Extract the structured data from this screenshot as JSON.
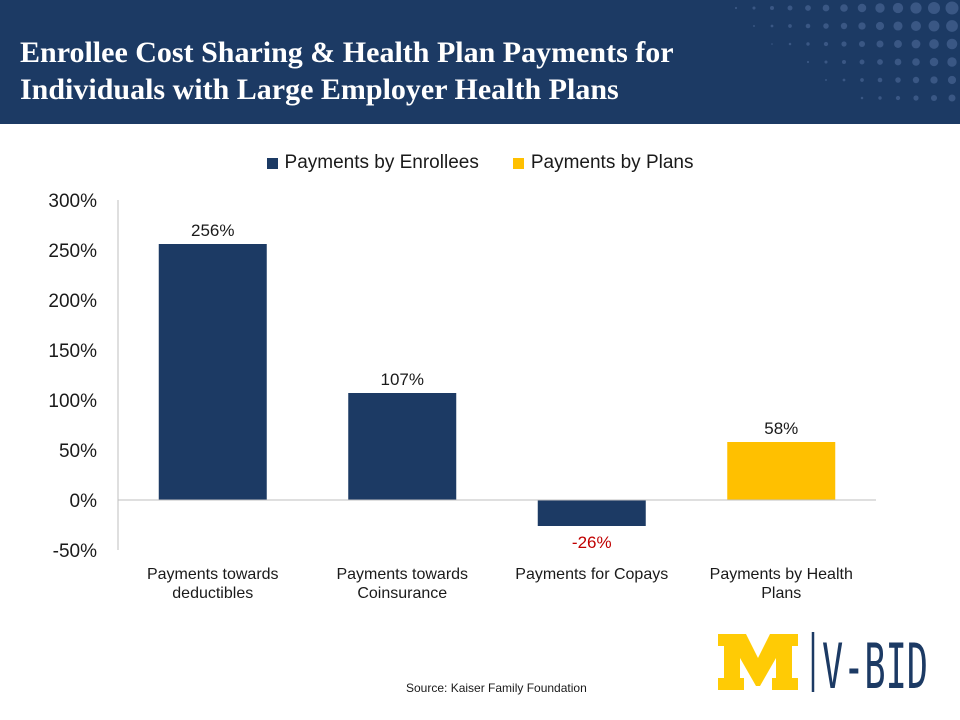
{
  "title": {
    "line1": "Enrollee Cost Sharing & Health Plan Payments for",
    "line2": "Individuals with Large Employer Health Plans"
  },
  "colors": {
    "header": "#1c3a64",
    "enrollees": "#1c3a64",
    "plans": "#ffc000",
    "negative_label": "#c00000",
    "logo_block": "#ffcb05"
  },
  "chart_data": {
    "type": "bar",
    "categories": [
      [
        "Payments towards",
        "deductibles"
      ],
      [
        "Payments towards",
        "Coinsurance"
      ],
      [
        "Payments for Copays"
      ],
      [
        "Payments by Health",
        "Plans"
      ]
    ],
    "series": [
      {
        "name": "Payments by Enrollees",
        "values": [
          256,
          107,
          -26,
          null
        ]
      },
      {
        "name": "Payments by Plans",
        "values": [
          null,
          null,
          null,
          58
        ]
      }
    ],
    "data_labels": [
      "256%",
      "107%",
      "-26%",
      "58%"
    ],
    "y_ticks": [
      "300%",
      "250%",
      "200%",
      "150%",
      "100%",
      "50%",
      "0%",
      "-50%"
    ],
    "ylim": [
      -50,
      300
    ],
    "grid": false,
    "legend_position": "top"
  },
  "source": "Source: Kaiser Family Foundation",
  "logo": {
    "text": "V-BID",
    "icon": "block-m-icon"
  }
}
